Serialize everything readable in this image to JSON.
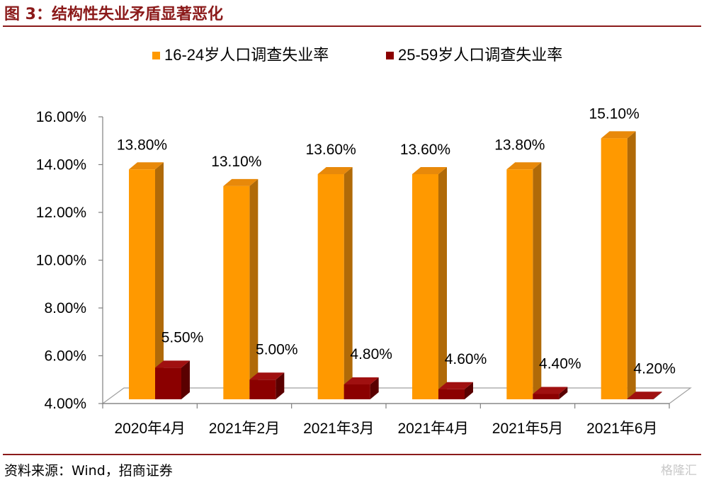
{
  "figure": {
    "title": "图 3：结构性失业矛盾显著恶化",
    "source": "资料来源：Wind，招商证券",
    "watermark": "格隆汇"
  },
  "colors": {
    "accent": "#8B1A1A",
    "series1_front": "#FF9900",
    "series1_top": "#E8890A",
    "series1_side": "#B06A08",
    "series2_front": "#8B0000",
    "series2_top": "#A01010",
    "series2_side": "#5A0000"
  },
  "chart_data": {
    "type": "bar",
    "title": "",
    "xlabel": "",
    "ylabel": "",
    "categories": [
      "2020年4月",
      "2021年2月",
      "2021年3月",
      "2021年4月",
      "2021年5月",
      "2021年6月"
    ],
    "series": [
      {
        "name": "16-24岁人口调查失业率",
        "values": [
          13.8,
          13.1,
          13.6,
          13.6,
          13.8,
          15.1
        ],
        "labels": [
          "13.80%",
          "13.10%",
          "13.60%",
          "13.60%",
          "13.80%",
          "15.10%"
        ]
      },
      {
        "name": "25-59岁人口调查失业率",
        "values": [
          5.5,
          5.0,
          4.8,
          4.6,
          4.4,
          4.2
        ],
        "labels": [
          "5.50%",
          "5.00%",
          "4.80%",
          "4.60%",
          "4.40%",
          "4.20%"
        ]
      }
    ],
    "ylim": [
      4,
      16
    ],
    "yticks": [
      "4.00%",
      "6.00%",
      "8.00%",
      "10.00%",
      "12.00%",
      "14.00%",
      "16.00%"
    ],
    "legend_position": "top",
    "grid": false,
    "style": "3d-clustered-bar"
  }
}
